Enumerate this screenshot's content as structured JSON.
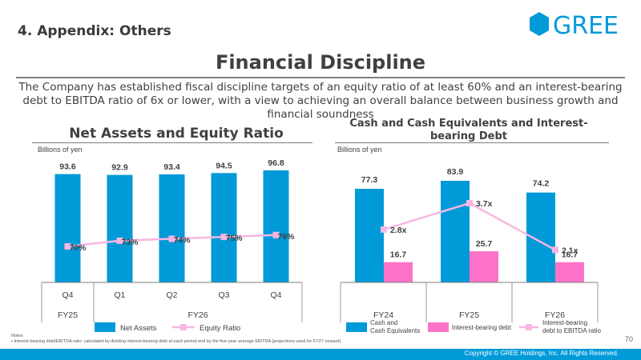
{
  "section_title": "4. Appendix: Others",
  "logo_text": "GREE",
  "main_title": "Financial Discipline",
  "description": "The Company has established fiscal discipline targets of an equity ratio of at least 60% and an interest-bearing debt to EBITDA ratio of 6x or lower, with a view to achieving an overall balance between business growth and financial soundness",
  "colors": {
    "net_assets": "#009ad9",
    "equity_ratio": "#f7b7e3",
    "cash": "#009ad9",
    "debt": "#ff72c9",
    "debt_ratio_line": "#f7b7e3",
    "footer": "#009ad9"
  },
  "chart_data": [
    {
      "type": "bar",
      "title": "Net Assets and Equity Ratio",
      "unit_label": "Billions of yen",
      "categories": [
        "Q4",
        "Q1",
        "Q2",
        "Q3",
        "Q4"
      ],
      "category_groups": [
        {
          "label": "FY25",
          "span": 1
        },
        {
          "label": "FY26",
          "span": 4
        }
      ],
      "series": [
        {
          "name": "Net Assets",
          "kind": "bar",
          "values": [
            93.6,
            92.9,
            93.4,
            94.5,
            96.8
          ],
          "value_labels": [
            "93.6",
            "92.9",
            "93.4",
            "94.5",
            "96.8"
          ]
        },
        {
          "name": "Equity Ratio",
          "kind": "line",
          "values": [
            70,
            73,
            74,
            75,
            76
          ],
          "value_labels": [
            "70%",
            "73%",
            "74%",
            "75%",
            "76%"
          ]
        }
      ]
    },
    {
      "type": "bar",
      "title": "Cash and Cash Equivalents and Interest-bearing Debt",
      "unit_label": "Billions of yen",
      "categories": [
        "FY24",
        "FY25",
        "FY26"
      ],
      "series": [
        {
          "name": "Cash and Cash Equivalents",
          "kind": "bar",
          "values": [
            77.3,
            83.9,
            74.2
          ],
          "value_labels": [
            "77.3",
            "83.9",
            "74.2"
          ]
        },
        {
          "name": "Interest-bearing debt",
          "kind": "bar",
          "values": [
            16.7,
            25.7,
            16.7
          ],
          "value_labels": [
            "16.7",
            "25.7",
            "16.7"
          ]
        },
        {
          "name": "Interest-bearing debt to EBITDA ratio",
          "kind": "line",
          "values": [
            2.8,
            3.7,
            2.1
          ],
          "value_labels": [
            "2.8x",
            "3.7x",
            "2.1x"
          ]
        }
      ]
    }
  ],
  "legend_left": {
    "net_assets": "Net Assets",
    "equity_ratio": "Equity Ratio"
  },
  "legend_right": {
    "cash_line1": "Cash and",
    "cash_line2": "Cash Equivalents",
    "debt": "Interest-bearing debt",
    "ratio_line1": "Interest-bearing",
    "ratio_line2": "debt to EBITDA ratio"
  },
  "notes_label": "Notes:",
  "note_1": "Interest-bearing debt/EBITDA ratio: calculated by dividing interest-bearing debt at each period-end by the five-year average EBITDA (projections used for FY27 onward)",
  "page_number": "70",
  "copyright": "Copyright © GREE Holdings, Inc. All Rights Reserved."
}
